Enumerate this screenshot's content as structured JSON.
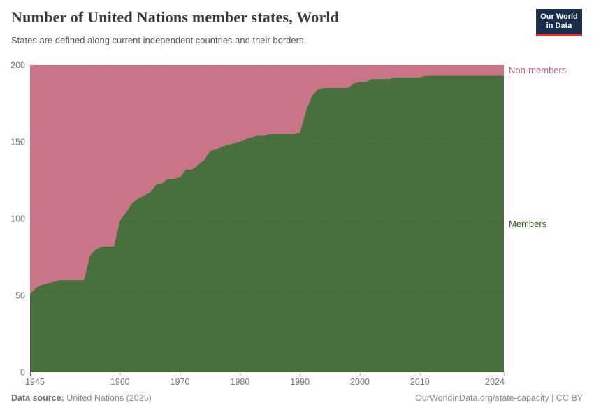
{
  "header": {
    "title": "Number of United Nations member states, World",
    "subtitle": "States are defined along current independent countries and their borders."
  },
  "logo": {
    "line1": "Our World",
    "line2": "in Data",
    "bg_color": "#1b2d4d",
    "bar_color": "#cf3a35"
  },
  "chart_data": {
    "type": "area",
    "stacked": true,
    "title": "Number of United Nations member states, World",
    "xlabel": "",
    "ylabel": "",
    "x_range": [
      1945,
      2024
    ],
    "ylim": [
      0,
      200
    ],
    "y_ticks": [
      0,
      50,
      100,
      150,
      200
    ],
    "x_ticks": [
      1945,
      1960,
      1970,
      1980,
      1990,
      2000,
      2010,
      2024
    ],
    "grid": "dashed-horizontal",
    "legend_position": "right-edge-labels",
    "total_states": 200,
    "x": [
      1945,
      1946,
      1947,
      1948,
      1949,
      1950,
      1951,
      1952,
      1953,
      1954,
      1955,
      1956,
      1957,
      1958,
      1959,
      1960,
      1961,
      1962,
      1963,
      1964,
      1965,
      1966,
      1967,
      1968,
      1969,
      1970,
      1971,
      1972,
      1973,
      1974,
      1975,
      1976,
      1977,
      1978,
      1979,
      1980,
      1981,
      1982,
      1983,
      1984,
      1985,
      1986,
      1987,
      1988,
      1989,
      1990,
      1991,
      1992,
      1993,
      1994,
      1995,
      1996,
      1997,
      1998,
      1999,
      2000,
      2001,
      2002,
      2003,
      2004,
      2005,
      2006,
      2007,
      2008,
      2009,
      2010,
      2011,
      2012,
      2013,
      2014,
      2015,
      2016,
      2017,
      2018,
      2019,
      2020,
      2021,
      2022,
      2023,
      2024
    ],
    "series": [
      {
        "name": "Members",
        "color": "#4a6f3e",
        "label_color": "#2f5a27",
        "values": [
          51,
          55,
          57,
          58,
          59,
          60,
          60,
          60,
          60,
          60,
          76,
          80,
          82,
          82,
          82,
          99,
          104,
          110,
          113,
          115,
          117,
          122,
          123,
          126,
          126,
          127,
          132,
          132,
          135,
          138,
          144,
          145,
          147,
          148,
          149,
          150,
          152,
          153,
          154,
          154,
          155,
          155,
          155,
          155,
          155,
          156,
          170,
          180,
          184,
          185,
          185,
          185,
          185,
          185,
          188,
          189,
          189,
          191,
          191,
          191,
          191,
          192,
          192,
          192,
          192,
          192,
          193,
          193,
          193,
          193,
          193,
          193,
          193,
          193,
          193,
          193,
          193,
          193,
          193,
          193
        ]
      },
      {
        "name": "Non-members",
        "color": "#ca7487",
        "label_color": "#c05e79",
        "values": [
          149,
          145,
          143,
          142,
          141,
          140,
          140,
          140,
          140,
          140,
          124,
          120,
          118,
          118,
          118,
          101,
          96,
          90,
          87,
          85,
          83,
          78,
          77,
          74,
          74,
          73,
          68,
          68,
          65,
          62,
          56,
          55,
          53,
          52,
          51,
          50,
          48,
          47,
          46,
          46,
          45,
          45,
          45,
          45,
          45,
          44,
          30,
          20,
          16,
          15,
          15,
          15,
          15,
          15,
          12,
          11,
          11,
          9,
          9,
          9,
          9,
          8,
          8,
          8,
          8,
          8,
          7,
          7,
          7,
          7,
          7,
          7,
          7,
          7,
          7,
          7,
          7,
          7,
          7,
          7
        ]
      }
    ]
  },
  "footer": {
    "source_label": "Data source:",
    "source_value": "United Nations (2025)",
    "credit": "OurWorldinData.org/state-capacity | CC BY"
  }
}
